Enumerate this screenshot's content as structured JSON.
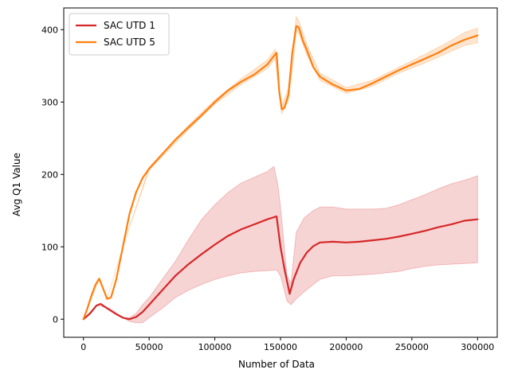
{
  "chart_data": {
    "type": "line",
    "title": "",
    "xlabel": "Number of Data",
    "ylabel": "Avg Q1 Value",
    "xlim": [
      -15000,
      315000
    ],
    "ylim": [
      -25,
      430
    ],
    "x_ticks": [
      0,
      50000,
      100000,
      150000,
      200000,
      250000,
      300000
    ],
    "y_ticks": [
      0,
      100,
      200,
      300,
      400
    ],
    "grid": false,
    "legend_position": "top-left",
    "series": [
      {
        "name": "SAC UTD 1",
        "color": "#d62728",
        "band_color": "#d62728",
        "points": [
          [
            0,
            0
          ],
          [
            5000,
            8
          ],
          [
            10000,
            19
          ],
          [
            13000,
            21
          ],
          [
            18000,
            15
          ],
          [
            25000,
            7
          ],
          [
            30000,
            2
          ],
          [
            35000,
            0
          ],
          [
            40000,
            3
          ],
          [
            45000,
            10
          ],
          [
            50000,
            20
          ],
          [
            60000,
            40
          ],
          [
            70000,
            60
          ],
          [
            80000,
            76
          ],
          [
            90000,
            90
          ],
          [
            100000,
            103
          ],
          [
            110000,
            115
          ],
          [
            120000,
            124
          ],
          [
            130000,
            131
          ],
          [
            140000,
            138
          ],
          [
            147000,
            142
          ],
          [
            150000,
            100
          ],
          [
            153000,
            70
          ],
          [
            157000,
            35
          ],
          [
            160000,
            55
          ],
          [
            165000,
            78
          ],
          [
            170000,
            92
          ],
          [
            175000,
            101
          ],
          [
            180000,
            106
          ],
          [
            190000,
            107
          ],
          [
            200000,
            106
          ],
          [
            210000,
            107
          ],
          [
            220000,
            109
          ],
          [
            230000,
            111
          ],
          [
            240000,
            114
          ],
          [
            250000,
            118
          ],
          [
            260000,
            122
          ],
          [
            270000,
            127
          ],
          [
            280000,
            131
          ],
          [
            290000,
            136
          ],
          [
            300000,
            138
          ]
        ],
        "band_upper": [
          [
            0,
            0
          ],
          [
            10000,
            19
          ],
          [
            20000,
            15
          ],
          [
            30000,
            2
          ],
          [
            35000,
            2
          ],
          [
            40000,
            8
          ],
          [
            45000,
            20
          ],
          [
            50000,
            30
          ],
          [
            60000,
            55
          ],
          [
            70000,
            80
          ],
          [
            80000,
            110
          ],
          [
            90000,
            138
          ],
          [
            100000,
            158
          ],
          [
            110000,
            175
          ],
          [
            120000,
            188
          ],
          [
            130000,
            196
          ],
          [
            140000,
            204
          ],
          [
            145000,
            211
          ],
          [
            148000,
            185
          ],
          [
            150000,
            155
          ],
          [
            155000,
            60
          ],
          [
            158000,
            50
          ],
          [
            162000,
            120
          ],
          [
            168000,
            140
          ],
          [
            175000,
            150
          ],
          [
            180000,
            155
          ],
          [
            190000,
            155
          ],
          [
            200000,
            152
          ],
          [
            210000,
            152
          ],
          [
            220000,
            152
          ],
          [
            230000,
            153
          ],
          [
            240000,
            158
          ],
          [
            250000,
            165
          ],
          [
            260000,
            172
          ],
          [
            270000,
            180
          ],
          [
            280000,
            187
          ],
          [
            290000,
            192
          ],
          [
            300000,
            198
          ]
        ],
        "band_lower": [
          [
            0,
            0
          ],
          [
            10000,
            19
          ],
          [
            20000,
            15
          ],
          [
            30000,
            2
          ],
          [
            35000,
            -3
          ],
          [
            40000,
            -5
          ],
          [
            45000,
            -5
          ],
          [
            50000,
            2
          ],
          [
            60000,
            15
          ],
          [
            70000,
            30
          ],
          [
            80000,
            40
          ],
          [
            90000,
            48
          ],
          [
            100000,
            55
          ],
          [
            110000,
            60
          ],
          [
            120000,
            64
          ],
          [
            130000,
            66
          ],
          [
            140000,
            67
          ],
          [
            147000,
            68
          ],
          [
            150000,
            60
          ],
          [
            155000,
            25
          ],
          [
            158000,
            20
          ],
          [
            162000,
            28
          ],
          [
            168000,
            38
          ],
          [
            175000,
            48
          ],
          [
            180000,
            55
          ],
          [
            190000,
            60
          ],
          [
            200000,
            60
          ],
          [
            210000,
            61
          ],
          [
            220000,
            62
          ],
          [
            230000,
            64
          ],
          [
            240000,
            66
          ],
          [
            250000,
            70
          ],
          [
            260000,
            73
          ],
          [
            270000,
            75
          ],
          [
            280000,
            76
          ],
          [
            290000,
            77
          ],
          [
            300000,
            78
          ]
        ]
      },
      {
        "name": "SAC UTD 5",
        "color": "#ff7f0e",
        "band_color": "#ff7f0e",
        "points": [
          [
            0,
            0
          ],
          [
            3000,
            15
          ],
          [
            6000,
            32
          ],
          [
            9000,
            47
          ],
          [
            12000,
            56
          ],
          [
            15000,
            42
          ],
          [
            18000,
            28
          ],
          [
            21000,
            30
          ],
          [
            25000,
            55
          ],
          [
            30000,
            100
          ],
          [
            35000,
            145
          ],
          [
            40000,
            175
          ],
          [
            45000,
            195
          ],
          [
            50000,
            208
          ],
          [
            60000,
            228
          ],
          [
            70000,
            248
          ],
          [
            80000,
            265
          ],
          [
            90000,
            282
          ],
          [
            100000,
            300
          ],
          [
            110000,
            316
          ],
          [
            120000,
            328
          ],
          [
            130000,
            338
          ],
          [
            140000,
            352
          ],
          [
            146000,
            366
          ],
          [
            147000,
            368
          ],
          [
            149000,
            315
          ],
          [
            151000,
            290
          ],
          [
            153000,
            292
          ],
          [
            156000,
            310
          ],
          [
            159000,
            368
          ],
          [
            162000,
            405
          ],
          [
            164000,
            403
          ],
          [
            167000,
            385
          ],
          [
            170000,
            372
          ],
          [
            175000,
            348
          ],
          [
            180000,
            335
          ],
          [
            190000,
            324
          ],
          [
            200000,
            316
          ],
          [
            210000,
            318
          ],
          [
            220000,
            326
          ],
          [
            230000,
            335
          ],
          [
            240000,
            344
          ],
          [
            250000,
            352
          ],
          [
            260000,
            360
          ],
          [
            270000,
            368
          ],
          [
            280000,
            378
          ],
          [
            290000,
            386
          ],
          [
            300000,
            392
          ]
        ],
        "band_upper": [
          [
            0,
            0
          ],
          [
            12000,
            56
          ],
          [
            18000,
            28
          ],
          [
            30000,
            100
          ],
          [
            50000,
            210
          ],
          [
            80000,
            268
          ],
          [
            100000,
            303
          ],
          [
            120000,
            332
          ],
          [
            140000,
            358
          ],
          [
            146000,
            373
          ],
          [
            149000,
            320
          ],
          [
            151000,
            295
          ],
          [
            156000,
            318
          ],
          [
            160000,
            385
          ],
          [
            162000,
            418
          ],
          [
            164000,
            412
          ],
          [
            170000,
            380
          ],
          [
            180000,
            340
          ],
          [
            200000,
            320
          ],
          [
            220000,
            330
          ],
          [
            240000,
            348
          ],
          [
            260000,
            366
          ],
          [
            280000,
            385
          ],
          [
            290000,
            396
          ],
          [
            300000,
            402
          ]
        ],
        "band_lower": [
          [
            0,
            0
          ],
          [
            12000,
            56
          ],
          [
            18000,
            28
          ],
          [
            30000,
            100
          ],
          [
            50000,
            206
          ],
          [
            80000,
            262
          ],
          [
            100000,
            297
          ],
          [
            120000,
            324
          ],
          [
            140000,
            346
          ],
          [
            146000,
            360
          ],
          [
            149000,
            310
          ],
          [
            151000,
            284
          ],
          [
            156000,
            302
          ],
          [
            160000,
            360
          ],
          [
            162000,
            398
          ],
          [
            164000,
            395
          ],
          [
            170000,
            365
          ],
          [
            180000,
            330
          ],
          [
            200000,
            312
          ],
          [
            220000,
            322
          ],
          [
            240000,
            340
          ],
          [
            260000,
            354
          ],
          [
            280000,
            370
          ],
          [
            290000,
            378
          ],
          [
            300000,
            382
          ]
        ]
      }
    ]
  }
}
